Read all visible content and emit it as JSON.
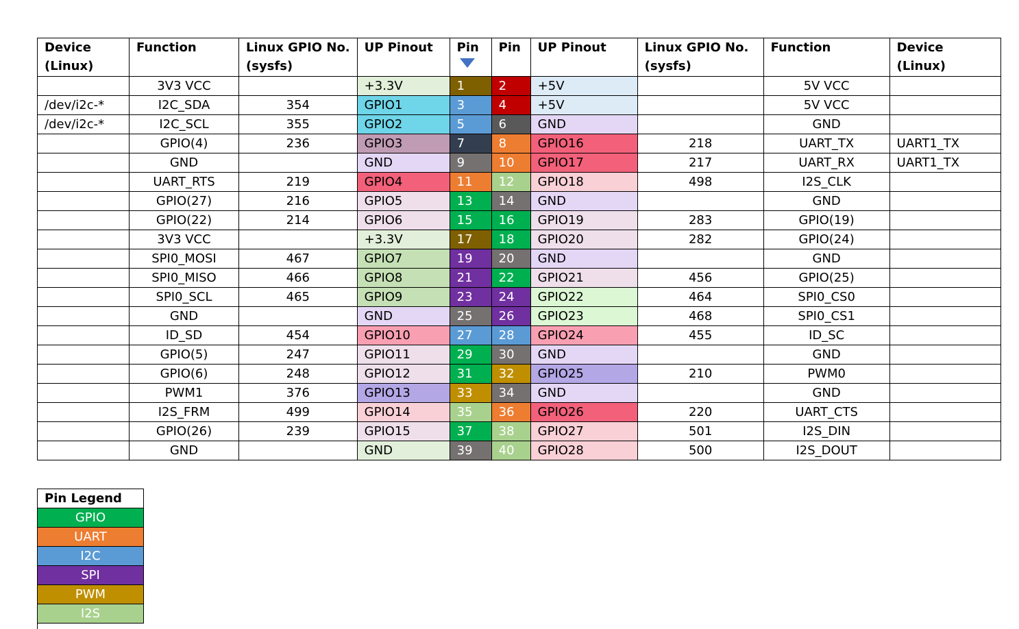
{
  "headers": [
    [
      "Device",
      "(Linux)"
    ],
    [
      "Function",
      ""
    ],
    [
      "Linux GPIO No.",
      "(sysfs)"
    ],
    [
      "UP Pinout",
      ""
    ],
    [
      "Pin",
      ""
    ],
    [
      "Pin",
      ""
    ],
    [
      "UP Pinout",
      ""
    ],
    [
      "Linux GPIO No.",
      "(sysfs)"
    ],
    [
      "Function",
      ""
    ],
    [
      "Device",
      "(Linux)"
    ]
  ],
  "pin_arrow_icon": "triangle-down-icon",
  "pin_colors": {
    "GPIO": "#00b050",
    "UART": "#ed7d31",
    "I2C": "#5b9bd5",
    "SPI": "#7030a0",
    "PWM": "#bf8f00",
    "I2S": "#a9d18e",
    "POWER": "#7f6000",
    "FIVEV": "#c00000",
    "GND": "#595959",
    "OTHER": "#333f50"
  },
  "rows": [
    {
      "ldev": "",
      "lfunc": "3V3 VCC",
      "lsys": "",
      "lup": "+3.3V",
      "lupbg": "#e2efda",
      "lpin": "1",
      "lpinbg": "#7f6000",
      "rpin": "2",
      "rpinbg": "#c00000",
      "rup": "+5V",
      "rupbg": "#ddebf7",
      "rsys": "",
      "rfunc": "5V VCC",
      "rdev": ""
    },
    {
      "ldev": "/dev/i2c-*",
      "lfunc": "I2C_SDA",
      "lsys": "354",
      "lup": "GPIO1",
      "lupbg": "#6fd5e8",
      "lpin": "3",
      "lpinbg": "#5b9bd5",
      "rpin": "4",
      "rpinbg": "#c00000",
      "rup": "+5V",
      "rupbg": "#ddebf7",
      "rsys": "",
      "rfunc": "5V VCC",
      "rdev": ""
    },
    {
      "ldev": "/dev/i2c-*",
      "lfunc": "I2C_SCL",
      "lsys": "355",
      "lup": "GPIO2",
      "lupbg": "#6fd5e8",
      "lpin": "5",
      "lpinbg": "#5b9bd5",
      "rpin": "6",
      "rpinbg": "#595959",
      "rup": "GND",
      "rupbg": "#e4d7f5",
      "rsys": "",
      "rfunc": "GND",
      "rdev": ""
    },
    {
      "ldev": "",
      "lfunc": "GPIO(4)",
      "lsys": "236",
      "lup": "GPIO3",
      "lupbg": "#c09bb4",
      "lpin": "7",
      "lpinbg": "#333f50",
      "rpin": "8",
      "rpinbg": "#ed7d31",
      "rup": "GPIO16",
      "rupbg": "#f2607a",
      "rsys": "218",
      "rfunc": "UART_TX",
      "rdev": "UART1_TX"
    },
    {
      "ldev": "",
      "lfunc": "GND",
      "lsys": "",
      "lup": "GND",
      "lupbg": "#e4d7f5",
      "lpin": "9",
      "lpinbg": "#757171",
      "rpin": "10",
      "rpinbg": "#ed7d31",
      "rup": "GPIO17",
      "rupbg": "#f2607a",
      "rsys": "217",
      "rfunc": "UART_RX",
      "rdev": "UART1_TX"
    },
    {
      "ldev": "",
      "lfunc": "UART_RTS",
      "lsys": "219",
      "lup": "GPIO4",
      "lupbg": "#f2607a",
      "lpin": "11",
      "lpinbg": "#ed7d31",
      "rpin": "12",
      "rpinbg": "#a9d18e",
      "rup": "GPIO18",
      "rupbg": "#f8d0d6",
      "rsys": "498",
      "rfunc": "I2S_CLK",
      "rdev": ""
    },
    {
      "ldev": "",
      "lfunc": "GPIO(27)",
      "lsys": "216",
      "lup": "GPIO5",
      "lupbg": "#eedfeb",
      "lpin": "13",
      "lpinbg": "#00b050",
      "rpin": "14",
      "rpinbg": "#757171",
      "rup": "GND",
      "rupbg": "#e4d7f5",
      "rsys": "",
      "rfunc": "GND",
      "rdev": ""
    },
    {
      "ldev": "",
      "lfunc": "GPIO(22)",
      "lsys": "214",
      "lup": "GPIO6",
      "lupbg": "#eedfeb",
      "lpin": "15",
      "lpinbg": "#00b050",
      "rpin": "16",
      "rpinbg": "#00b050",
      "rup": "GPIO19",
      "rupbg": "#eedfeb",
      "rsys": "283",
      "rfunc": "GPIO(19)",
      "rdev": ""
    },
    {
      "ldev": "",
      "lfunc": "3V3 VCC",
      "lsys": "",
      "lup": "+3.3V",
      "lupbg": "#e2efda",
      "lpin": "17",
      "lpinbg": "#7f6000",
      "rpin": "18",
      "rpinbg": "#00b050",
      "rup": "GPIO20",
      "rupbg": "#eedfeb",
      "rsys": "282",
      "rfunc": "GPIO(24)",
      "rdev": ""
    },
    {
      "ldev": "",
      "lfunc": "SPI0_MOSI",
      "lsys": "467",
      "lup": "GPIO7",
      "lupbg": "#c5e0b4",
      "lpin": "19",
      "lpinbg": "#7030a0",
      "rpin": "20",
      "rpinbg": "#757171",
      "rup": "GND",
      "rupbg": "#e4d7f5",
      "rsys": "",
      "rfunc": "GND",
      "rdev": ""
    },
    {
      "ldev": "",
      "lfunc": "SPI0_MISO",
      "lsys": "466",
      "lup": "GPIO8",
      "lupbg": "#c5e0b4",
      "lpin": "21",
      "lpinbg": "#7030a0",
      "rpin": "22",
      "rpinbg": "#00b050",
      "rup": "GPIO21",
      "rupbg": "#eedfeb",
      "rsys": "456",
      "rfunc": "GPIO(25)",
      "rdev": ""
    },
    {
      "ldev": "",
      "lfunc": "SPI0_SCL",
      "lsys": "465",
      "lup": "GPIO9",
      "lupbg": "#c5e0b4",
      "lpin": "23",
      "lpinbg": "#7030a0",
      "rpin": "24",
      "rpinbg": "#7030a0",
      "rup": "GPIO22",
      "rupbg": "#dcf7d4",
      "rsys": "464",
      "rfunc": "SPI0_CS0",
      "rdev": ""
    },
    {
      "ldev": "",
      "lfunc": "GND",
      "lsys": "",
      "lup": "GND",
      "lupbg": "#e4d7f5",
      "lpin": "25",
      "lpinbg": "#757171",
      "rpin": "26",
      "rpinbg": "#7030a0",
      "rup": "GPIO23",
      "rupbg": "#dcf7d4",
      "rsys": "468",
      "rfunc": "SPI0_CS1",
      "rdev": ""
    },
    {
      "ldev": "",
      "lfunc": "ID_SD",
      "lsys": "454",
      "lup": "GPIO10",
      "lupbg": "#f99fb2",
      "lpin": "27",
      "lpinbg": "#5b9bd5",
      "rpin": "28",
      "rpinbg": "#5b9bd5",
      "rup": "GPIO24",
      "rupbg": "#f99fb2",
      "rsys": "455",
      "rfunc": "ID_SC",
      "rdev": ""
    },
    {
      "ldev": "",
      "lfunc": "GPIO(5)",
      "lsys": "247",
      "lup": "GPIO11",
      "lupbg": "#eedfeb",
      "lpin": "29",
      "lpinbg": "#00b050",
      "rpin": "30",
      "rpinbg": "#757171",
      "rup": "GND",
      "rupbg": "#e4d7f5",
      "rsys": "",
      "rfunc": "GND",
      "rdev": ""
    },
    {
      "ldev": "",
      "lfunc": "GPIO(6)",
      "lsys": "248",
      "lup": "GPIO12",
      "lupbg": "#eedfeb",
      "lpin": "31",
      "lpinbg": "#00b050",
      "rpin": "32",
      "rpinbg": "#bf8f00",
      "rup": "GPIO25",
      "rupbg": "#b4a7e6",
      "rsys": "210",
      "rfunc": "PWM0",
      "rdev": ""
    },
    {
      "ldev": "",
      "lfunc": "PWM1",
      "lsys": "376",
      "lup": "GPIO13",
      "lupbg": "#b4a7e6",
      "lpin": "33",
      "lpinbg": "#bf8f00",
      "rpin": "34",
      "rpinbg": "#757171",
      "rup": "GND",
      "rupbg": "#e4d7f5",
      "rsys": "",
      "rfunc": "GND",
      "rdev": ""
    },
    {
      "ldev": "",
      "lfunc": "I2S_FRM",
      "lsys": "499",
      "lup": "GPIO14",
      "lupbg": "#f8d0d6",
      "lpin": "35",
      "lpinbg": "#a9d18e",
      "rpin": "36",
      "rpinbg": "#ed7d31",
      "rup": "GPIO26",
      "rupbg": "#f2607a",
      "rsys": "220",
      "rfunc": "UART_CTS",
      "rdev": ""
    },
    {
      "ldev": "",
      "lfunc": "GPIO(26)",
      "lsys": "239",
      "lup": "GPIO15",
      "lupbg": "#eedfeb",
      "lpin": "37",
      "lpinbg": "#00b050",
      "rpin": "38",
      "rpinbg": "#a9d18e",
      "rup": "GPIO27",
      "rupbg": "#f8d0d6",
      "rsys": "501",
      "rfunc": "I2S_DIN",
      "rdev": ""
    },
    {
      "ldev": "",
      "lfunc": "GND",
      "lsys": "",
      "lup": "GND",
      "lupbg": "#e2efda",
      "lpin": "39",
      "lpinbg": "#757171",
      "rpin": "40",
      "rpinbg": "#a9d18e",
      "rup": "GPIO28",
      "rupbg": "#f8d0d6",
      "rsys": "500",
      "rfunc": "I2S_DOUT",
      "rdev": ""
    }
  ],
  "legend": {
    "title": "Pin Legend",
    "items": [
      {
        "label": "GPIO",
        "color": "#00b050"
      },
      {
        "label": "UART",
        "color": "#ed7d31"
      },
      {
        "label": "I2C",
        "color": "#5b9bd5"
      },
      {
        "label": "SPI",
        "color": "#7030a0"
      },
      {
        "label": "PWM",
        "color": "#bf8f00"
      },
      {
        "label": "I2S",
        "color": "#a9d18e"
      }
    ]
  }
}
